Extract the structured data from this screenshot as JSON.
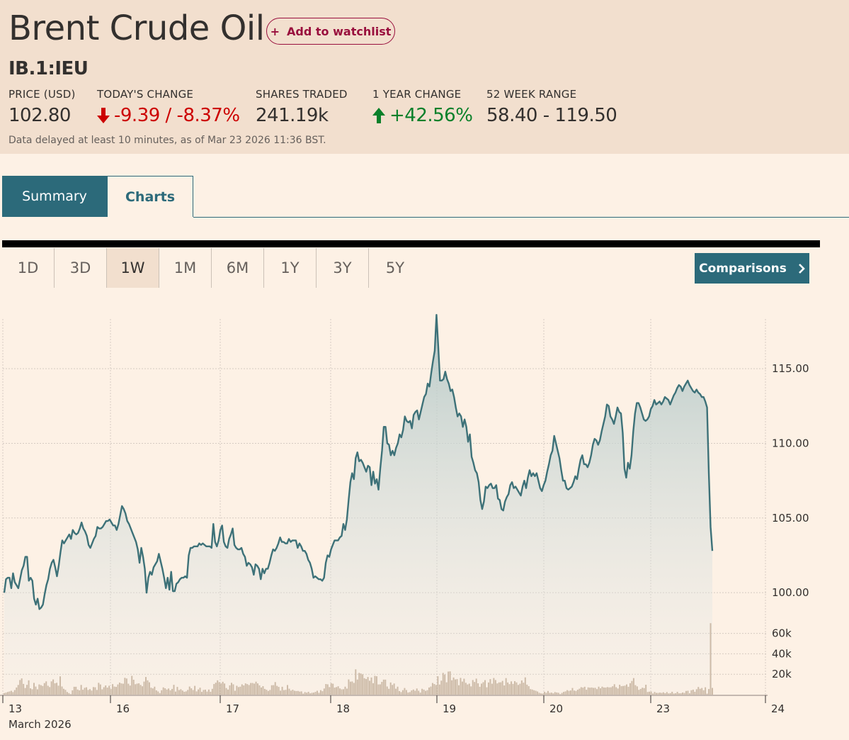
{
  "header": {
    "title": "Brent Crude Oil",
    "watchlist_label": "Add to watchlist",
    "watchlist_icon": "+",
    "symbol": "IB.1:IEU",
    "stats": {
      "price_label": "PRICE (USD)",
      "price_value": "102.80",
      "change_label": "TODAY'S CHANGE",
      "change_value": "-9.39 / -8.37%",
      "shares_label": "SHARES TRADED",
      "shares_value": "241.19k",
      "year_label": "1 YEAR CHANGE",
      "year_value": "+42.56%",
      "range_label": "52 WEEK RANGE",
      "range_value": "58.40 - 119.50"
    },
    "delay_note": "Data delayed at least 10 minutes, as of Mar 23 2026 11:36 BST."
  },
  "tabs": {
    "summary": "Summary",
    "charts": "Charts"
  },
  "ranges": [
    "1D",
    "3D",
    "1W",
    "1M",
    "6M",
    "1Y",
    "3Y",
    "5Y"
  ],
  "active_range": "1W",
  "comparisons_label": "Comparisons",
  "colors": {
    "accent": "#2c6a7a",
    "line": "#3d7178",
    "negative": "#cc0000",
    "positive": "#09802a",
    "volume": "#cdbba8",
    "header_bg": "#f2dfce",
    "page_bg": "#fdf1e5"
  },
  "chart_data": {
    "type": "area",
    "title": "Brent Crude Oil",
    "xlabel": "March 2026",
    "x_ticks": [
      "13",
      "16",
      "17",
      "18",
      "19",
      "20",
      "23",
      "24"
    ],
    "price_ticks": [
      "115.00",
      "110.00",
      "105.00",
      "100.00"
    ],
    "volume_ticks": [
      "60k",
      "40k",
      "20k"
    ],
    "price_range": [
      98.3,
      118.8
    ],
    "volume_range": [
      0,
      75000
    ],
    "price_series": [
      100.0,
      100.9,
      101.0,
      101.0,
      100.3,
      101.3,
      100.7,
      100.5,
      100.3,
      100.9,
      101.5,
      101.8,
      102.4,
      102.4,
      100.8,
      101.0,
      100.8,
      99.6,
      99.2,
      99.6,
      98.9,
      99.0,
      99.2,
      99.9,
      100.5,
      100.9,
      101.6,
      102.0,
      102.2,
      101.7,
      101.1,
      101.8,
      102.7,
      103.5,
      103.3,
      103.5,
      103.7,
      103.9,
      103.6,
      104.2,
      104.0,
      103.9,
      104.0,
      104.3,
      104.7,
      104.3,
      104.1,
      103.8,
      103.2,
      103.0,
      103.3,
      103.6,
      103.8,
      104.4,
      104.3,
      104.3,
      104.4,
      104.6,
      104.8,
      104.8,
      104.9,
      104.7,
      104.5,
      104.5,
      104.2,
      104.6,
      105.2,
      105.8,
      105.6,
      105.3,
      104.8,
      104.6,
      104.3,
      104.0,
      103.7,
      103.4,
      102.9,
      102.0,
      103.0,
      102.4,
      101.6,
      100.0,
      101.0,
      101.4,
      101.2,
      101.7,
      101.9,
      102.1,
      102.6,
      102.1,
      101.6,
      101.0,
      100.3,
      101.0,
      100.2,
      101.4,
      100.1,
      100.1,
      100.6,
      100.7,
      100.9,
      101.0,
      101.0,
      101.1,
      101.0,
      102.5,
      103.0,
      103.0,
      103.1,
      103.1,
      103.1,
      103.3,
      103.2,
      103.3,
      103.2,
      103.1,
      103.1,
      103.1,
      103.0,
      104.6,
      103.4,
      103.1,
      103.5,
      104.2,
      104.5,
      103.4,
      103.1,
      103.0,
      103.6,
      103.9,
      104.3,
      103.2,
      103.0,
      102.9,
      102.9,
      103.0,
      102.6,
      102.4,
      101.8,
      102.0,
      101.9,
      101.7,
      101.2,
      101.9,
      101.8,
      101.6,
      100.9,
      101.6,
      101.3,
      101.6,
      101.6,
      102.0,
      102.5,
      102.9,
      102.8,
      103.0,
      103.3,
      103.7,
      103.4,
      103.4,
      103.3,
      103.3,
      103.6,
      103.4,
      103.5,
      103.5,
      103.5,
      103.0,
      103.3,
      103.1,
      102.8,
      102.8,
      102.6,
      102.2,
      102.0,
      101.6,
      101.0,
      101.1,
      101.0,
      100.9,
      100.9,
      100.8,
      101.0,
      102.0,
      102.5,
      102.4,
      102.9,
      103.2,
      103.5,
      103.5,
      103.5,
      103.7,
      103.8,
      104.6,
      104.2,
      104.9,
      106.2,
      107.4,
      108.0,
      107.6,
      109.0,
      109.4,
      108.8,
      108.9,
      108.7,
      108.4,
      108.1,
      108.5,
      108.4,
      107.2,
      108.1,
      107.3,
      107.6,
      106.9,
      108.3,
      109.5,
      111.1,
      111.1,
      110.0,
      109.9,
      109.2,
      109.5,
      109.2,
      109.7,
      110.0,
      110.6,
      110.4,
      110.9,
      111.8,
      111.5,
      111.4,
      111.5,
      111.0,
      111.9,
      112.1,
      112.2,
      111.6,
      112.1,
      112.6,
      113.1,
      113.3,
      114.0,
      113.8,
      114.7,
      115.5,
      116.2,
      118.6,
      116.5,
      114.2,
      114.2,
      114.3,
      114.8,
      114.3,
      114.0,
      113.5,
      113.6,
      113.1,
      112.4,
      111.8,
      112.0,
      111.8,
      111.1,
      111.6,
      111.1,
      110.1,
      110.6,
      109.1,
      108.7,
      108.2,
      108.0,
      107.4,
      106.2,
      105.6,
      106.1,
      107.1,
      107.0,
      107.2,
      107.3,
      107.0,
      107.0,
      107.2,
      106.3,
      106.2,
      105.6,
      105.5,
      106.1,
      106.4,
      106.6,
      107.2,
      107.4,
      107.0,
      107.1,
      106.9,
      106.7,
      106.5,
      107.1,
      107.5,
      107.0,
      107.7,
      108.2,
      107.8,
      108.0,
      107.8,
      108.0,
      107.5,
      107.0,
      106.8,
      107.2,
      107.5,
      108.1,
      108.6,
      109.2,
      109.5,
      110.5,
      110.0,
      109.5,
      109.0,
      108.2,
      107.5,
      107.5,
      107.0,
      106.9,
      107.0,
      107.1,
      107.4,
      107.8,
      107.6,
      108.3,
      108.9,
      109.2,
      108.6,
      108.6,
      108.4,
      108.7,
      109.2,
      109.9,
      110.3,
      110.2,
      109.9,
      110.2,
      110.8,
      111.3,
      111.8,
      112.6,
      112.5,
      111.8,
      111.6,
      111.3,
      111.8,
      112.4,
      112.1,
      112.0,
      110.7,
      108.3,
      107.7,
      108.7,
      108.3,
      109.2,
      110.8,
      112.0,
      112.7,
      112.7,
      112.4,
      112.0,
      111.6,
      111.5,
      111.6,
      111.8,
      112.3,
      112.5,
      112.9,
      112.6,
      112.7,
      112.8,
      112.6,
      112.8,
      113.1,
      113.0,
      112.9,
      112.6,
      112.9,
      113.2,
      113.4,
      113.7,
      113.9,
      113.8,
      113.5,
      113.8,
      114.0,
      114.2,
      113.9,
      113.7,
      113.5,
      113.4,
      113.6,
      113.4,
      113.3,
      113.1,
      113.1,
      112.8,
      112.4,
      108.0,
      104.4,
      102.8
    ],
    "volume_series": [
      1500,
      2000,
      2600,
      3100,
      3800,
      2500,
      4500,
      7000,
      9500,
      14300,
      15900,
      10500,
      6500,
      9600,
      14000,
      6200,
      5300,
      11500,
      7900,
      5200,
      10000,
      9300,
      8500,
      11300,
      13000,
      8700,
      7400,
      13000,
      14900,
      11100,
      11600,
      8800,
      17900,
      8000,
      5700,
      4700,
      2600,
      1500,
      500,
      4200,
      7700,
      7700,
      5000,
      4200,
      9500,
      4800,
      6700,
      7200,
      4600,
      5400,
      4000,
      7400,
      7200,
      4600,
      11600,
      10000,
      5200,
      7300,
      9000,
      6900,
      8700,
      5500,
      10300,
      7900,
      7600,
      10000,
      11800,
      11000,
      10700,
      16500,
      15800,
      10700,
      8900,
      18400,
      14600,
      10200,
      10800,
      11100,
      9500,
      8200,
      12800,
      17300,
      14000,
      12100,
      6800,
      6100,
      7800,
      4200,
      3100,
      1500,
      4300,
      7100,
      6200,
      5000,
      6000,
      4200,
      5600,
      9600,
      3000,
      7600,
      4500,
      5300,
      4000,
      2800,
      3200,
      4600,
      7900,
      6200,
      4500,
      8600,
      3200,
      5100,
      6800,
      2700,
      4600,
      4900,
      3000,
      5000,
      2800,
      5700,
      10400,
      11700,
      14000,
      12200,
      11000,
      12600,
      10900,
      6500,
      5000,
      9100,
      11600,
      10100,
      3800,
      8700,
      7400,
      7800,
      10100,
      9000,
      11000,
      10300,
      9400,
      11400,
      11400,
      10800,
      12700,
      11000,
      9100,
      7000,
      8300,
      5600,
      4800,
      3600,
      4600,
      9200,
      9300,
      12300,
      8600,
      7600,
      3900,
      7700,
      4400,
      4700,
      9400,
      5800,
      3900,
      4800,
      3800,
      3500,
      3600,
      3000,
      3200,
      1000,
      2500,
      1900,
      2800,
      1300,
      1800,
      2000,
      2700,
      3800,
      1800,
      4400,
      3400,
      6000,
      10400,
      10100,
      7400,
      11200,
      10700,
      6900,
      7400,
      8200,
      6100,
      5200,
      5300,
      7800,
      5900,
      14900,
      12700,
      12900,
      11500,
      24800,
      14800,
      21300,
      20700,
      19900,
      16100,
      15300,
      17300,
      13600,
      16800,
      11200,
      18400,
      18000,
      10000,
      10100,
      12500,
      14700,
      14700,
      8000,
      5700,
      11900,
      9500,
      10900,
      5800,
      7800,
      3500,
      2500,
      4400,
      6500,
      4500,
      2100,
      2500,
      4100,
      5000,
      3800,
      6000,
      3800,
      2000,
      5700,
      4900,
      3700,
      4400,
      7000,
      7900,
      11400,
      10400,
      9400,
      18000,
      9900,
      13700,
      21300,
      19700,
      12100,
      22600,
      22800,
      14100,
      16800,
      14900,
      15200,
      9200,
      16400,
      12800,
      15600,
      11600,
      10000,
      10800,
      8100,
      14300,
      12400,
      15700,
      11100,
      7700,
      10800,
      12200,
      14200,
      7200,
      11900,
      15200,
      10700,
      16300,
      14300,
      11000,
      12000,
      12100,
      13500,
      9000,
      16200,
      11900,
      10300,
      13000,
      10500,
      13200,
      12000,
      9500,
      10700,
      13900,
      11700,
      16900,
      9800,
      8300,
      5400,
      5000,
      4300,
      3800,
      3100,
      1800,
      1200,
      1000,
      2700,
      1800,
      3600,
      1700,
      2000,
      1300,
      2500,
      2100,
      1800,
      500,
      1700,
      2700,
      3200,
      4400,
      3700,
      4100,
      6500,
      4000,
      3600,
      4800,
      5800,
      7300,
      6800,
      7700,
      4800,
      7100,
      6800,
      7000,
      6600,
      6700,
      5400,
      7800,
      6200,
      7800,
      7000,
      6900,
      7400,
      7100,
      7200,
      8200,
      10200,
      7300,
      6000,
      9700,
      8300,
      8500,
      8800,
      10000,
      7700,
      11200,
      13400,
      16200,
      9300,
      8100,
      4700,
      5600,
      6800,
      6400,
      9700,
      2600,
      2900,
      3000,
      1100,
      2600,
      1700,
      1700,
      2000,
      1700,
      2300,
      1400,
      2500,
      1200,
      1500,
      2800,
      1100,
      1400,
      2700,
      1300,
      1400,
      2100,
      1700,
      3600,
      3800,
      1300,
      4300,
      4900,
      2800,
      5300,
      7500,
      5700,
      6500,
      4300,
      7200,
      1000,
      5500,
      70000,
      6600
    ]
  }
}
